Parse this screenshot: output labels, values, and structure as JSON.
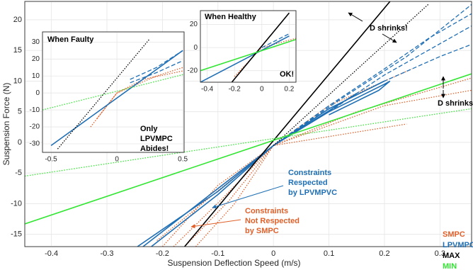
{
  "chart_data": [
    {
      "type": "line",
      "x_label": "Suspension Deflection Speed (m/s)",
      "y_label": "Suspension Force (N)",
      "xlim": [
        -0.448,
        0.357
      ],
      "ylim": [
        -17,
        23
      ],
      "xticks": [
        -0.4,
        -0.3,
        -0.2,
        -0.1,
        0,
        0.1,
        0.2,
        0.3
      ],
      "yticks": [
        -15,
        -10,
        -5,
        0,
        5,
        10,
        15,
        20
      ],
      "grid": true,
      "series": [
        {
          "name": "SMPC",
          "color": "#e0602a",
          "lines": [
            {
              "style": "dotted",
              "x": [
                -0.2,
                -0.1,
                0,
                0.1,
                0.25
              ],
              "y": [
                -17,
                -7,
                -0.5,
                6,
                12
              ]
            },
            {
              "style": "dotted",
              "x": [
                -0.18,
                -0.09,
                0,
                0.15,
                0.357
              ],
              "y": [
                -17,
                -9,
                -0.5,
                5,
                10.5
              ]
            },
            {
              "style": "dotted",
              "x": [
                -0.16,
                -0.08,
                0,
                0.2,
                0.357
              ],
              "y": [
                -17,
                -9.5,
                -0.5,
                6,
                8.5
              ]
            },
            {
              "style": "dotted",
              "x": [
                -0.21,
                0,
                0.24
              ],
              "y": [
                -16,
                -0.5,
                3
              ]
            },
            {
              "style": "dotted",
              "x": [
                -0.14,
                -0.07,
                0
              ],
              "y": [
                -17,
                -10,
                -0.5
              ]
            }
          ]
        },
        {
          "name": "LPVMPC",
          "color": "#1f6fb4",
          "lines": [
            {
              "style": "solid",
              "x": [
                -0.245,
                -0.1,
                0,
                0.1,
                0.2,
                0.21,
                0.19,
                0.1
              ],
              "y": [
                -17,
                -8,
                -0.5,
                5,
                9.5,
                10,
                8.5,
                4.5
              ]
            },
            {
              "style": "solid",
              "x": [
                -0.22,
                -0.1,
                0,
                0.1,
                0.2
              ],
              "y": [
                -17,
                -8.5,
                -0.5,
                5.5,
                10
              ]
            },
            {
              "style": "solid",
              "x": [
                -0.235,
                0,
                0.15
              ],
              "y": [
                -17,
                -0.5,
                8
              ]
            },
            {
              "style": "dashed",
              "x": [
                0,
                0.1,
                0.2,
                0.28,
                0.357
              ],
              "y": [
                -0.5,
                6,
                12,
                17,
                21
              ]
            },
            {
              "style": "dashed",
              "x": [
                0,
                0.1,
                0.2,
                0.3,
                0.357
              ],
              "y": [
                -0.5,
                5.5,
                10,
                14,
                16
              ]
            },
            {
              "style": "dashed",
              "x": [
                0,
                0.12,
                0.24,
                0.357
              ],
              "y": [
                -0.5,
                7,
                14,
                22.5
              ]
            },
            {
              "style": "dashed",
              "x": [
                0.1,
                0.2,
                0.357
              ],
              "y": [
                5,
                11,
                19
              ]
            }
          ]
        },
        {
          "name": "MAX",
          "color": "#000000",
          "lines": [
            {
              "style": "solid",
              "x": [
                -0.16,
                0.21
              ],
              "y": [
                -17,
                23
              ]
            },
            {
              "style": "dotted",
              "x": [
                0,
                0.28
              ],
              "y": [
                -0.5,
                22.6
              ]
            }
          ]
        },
        {
          "name": "MIN",
          "color": "#33e633",
          "lines": [
            {
              "style": "solid",
              "x": [
                -0.448,
                0.357
              ],
              "y": [
                -13.3,
                11.2
              ]
            },
            {
              "style": "dotted",
              "x": [
                -0.448,
                0.357
              ],
              "y": [
                -5.5,
                5.5
              ]
            }
          ]
        }
      ],
      "annotations": [
        {
          "lines": [
            "Constraints",
            "Respected",
            "by LPVMPVC"
          ],
          "color": "#1f6fb4"
        },
        {
          "lines": [
            "Constraints",
            "Not Respected",
            "by SMPC"
          ],
          "color": "#e0602a"
        },
        {
          "lines": [
            "D shrinks!"
          ],
          "color": "#000000"
        },
        {
          "lines": [
            "D shrinks!"
          ],
          "color": "#000000"
        }
      ]
    },
    {
      "type": "line",
      "xlim": [
        -0.565,
        0.51
      ],
      "ylim": [
        -35,
        36
      ],
      "xticks": [
        -0.5,
        0,
        0.5
      ],
      "yticks": [
        -30,
        -20,
        -10,
        0,
        10,
        20,
        30
      ],
      "grid": true,
      "series": [
        {
          "color": "#e0602a",
          "lines": [
            {
              "style": "dotted",
              "x": [
                -0.2,
                0,
                0.2,
                0.5
              ],
              "y": [
                -20,
                0,
                8,
                13
              ]
            },
            {
              "style": "dotted",
              "x": [
                -0.15,
                0,
                0.3,
                0.5
              ],
              "y": [
                -15,
                0,
                10,
                15
              ]
            }
          ]
        },
        {
          "color": "#1f6fb4",
          "lines": [
            {
              "style": "solid",
              "x": [
                -0.5,
                0.5
              ],
              "y": [
                -31,
                25
              ]
            },
            {
              "style": "dashed",
              "x": [
                0.1,
                0.3,
                0.5
              ],
              "y": [
                8,
                15,
                25
              ]
            },
            {
              "style": "dashed",
              "x": [
                0.1,
                0.3,
                0.5
              ],
              "y": [
                6,
                12,
                19
              ]
            }
          ]
        },
        {
          "color": "#000000",
          "lines": [
            {
              "style": "dotted",
              "x": [
                -0.45,
                0.25
              ],
              "y": [
                -33,
                32
              ]
            }
          ]
        },
        {
          "color": "#33e633",
          "lines": [
            {
              "style": "dotted",
              "x": [
                -0.565,
                0.51
              ],
              "y": [
                -10,
                11
              ]
            }
          ]
        }
      ],
      "annotations": [
        {
          "lines": [
            "When Faulty"
          ],
          "color": "#000000"
        },
        {
          "lines": [
            "Only",
            "LPVMPC",
            "Abides!"
          ],
          "color": "#000000"
        }
      ]
    },
    {
      "type": "line",
      "xlim": [
        -0.45,
        0.25
      ],
      "ylim": [
        -30,
        32
      ],
      "xticks": [
        -0.4,
        -0.2,
        0,
        0.2
      ],
      "yticks": [
        -20,
        0,
        20
      ],
      "grid": true,
      "series": [
        {
          "color": "#e0602a",
          "lines": [
            {
              "style": "dotted",
              "x": [
                -0.2,
                0,
                0.25
              ],
              "y": [
                -25,
                0,
                8
              ]
            }
          ]
        },
        {
          "color": "#1f6fb4",
          "lines": [
            {
              "style": "solid",
              "x": [
                -0.45,
                0.2
              ],
              "y": [
                -30,
                10
              ]
            },
            {
              "style": "dashed",
              "x": [
                0,
                0.2
              ],
              "y": [
                0,
                12
              ]
            }
          ]
        },
        {
          "color": "#000000",
          "lines": [
            {
              "style": "solid",
              "x": [
                -0.22,
                0.2
              ],
              "y": [
                -30,
                30
              ]
            }
          ]
        },
        {
          "color": "#33e633",
          "lines": [
            {
              "style": "solid",
              "x": [
                -0.45,
                0.25
              ],
              "y": [
                -20,
                7
              ]
            }
          ]
        }
      ],
      "annotations": [
        {
          "lines": [
            "When Healthy"
          ],
          "color": "#000000"
        },
        {
          "lines": [
            "OK!"
          ],
          "color": "#000000"
        }
      ]
    }
  ]
}
